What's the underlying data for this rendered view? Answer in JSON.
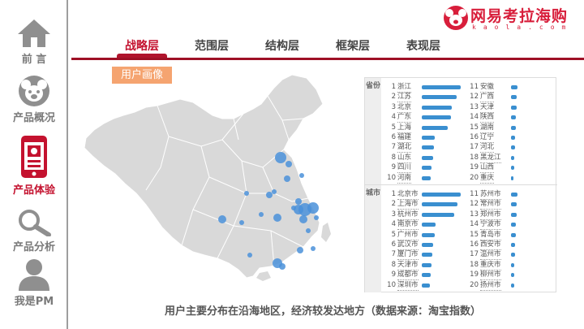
{
  "sidebar": {
    "items": [
      {
        "label": "前 言",
        "icon": "home-icon",
        "active": false
      },
      {
        "label": "产品概况",
        "icon": "koala-icon",
        "active": false
      },
      {
        "label": "产品体验",
        "icon": "phone-icon",
        "active": true
      },
      {
        "label": "产品分析",
        "icon": "magnifier-icon",
        "active": false
      },
      {
        "label": "我是PM",
        "icon": "person-icon",
        "active": false
      }
    ]
  },
  "logo": {
    "text": "网易考拉海购",
    "sub": "kaola.com",
    "color": "#d81e3b"
  },
  "tabs": [
    {
      "label": "战略层",
      "active": true
    },
    {
      "label": "范围层",
      "active": false
    },
    {
      "label": "结构层",
      "active": false
    },
    {
      "label": "框架层",
      "active": false
    },
    {
      "label": "表现层",
      "active": false
    }
  ],
  "badge": "用户画像",
  "ranking": {
    "province": {
      "tag": "省份",
      "left": [
        {
          "rank": "1",
          "name": "浙江",
          "value": 100
        },
        {
          "rank": "2",
          "name": "江苏",
          "value": 90
        },
        {
          "rank": "3",
          "name": "北京",
          "value": 78
        },
        {
          "rank": "4",
          "name": "广东",
          "value": 74
        },
        {
          "rank": "5",
          "name": "上海",
          "value": 67
        },
        {
          "rank": "6",
          "name": "福建",
          "value": 33
        },
        {
          "rank": "7",
          "name": "湖北",
          "value": 31
        },
        {
          "rank": "8",
          "name": "山东",
          "value": 29
        },
        {
          "rank": "9",
          "name": "四川",
          "value": 26
        },
        {
          "rank": "10",
          "name": "河南",
          "value": 22
        }
      ],
      "right": [
        {
          "rank": "11",
          "name": "安徽",
          "value": 18
        },
        {
          "rank": "12",
          "name": "广西",
          "value": 16
        },
        {
          "rank": "13",
          "name": "天津",
          "value": 15
        },
        {
          "rank": "14",
          "name": "陕西",
          "value": 14
        },
        {
          "rank": "15",
          "name": "湖南",
          "value": 13
        },
        {
          "rank": "16",
          "name": "辽宁",
          "value": 12
        },
        {
          "rank": "17",
          "name": "河北",
          "value": 11
        },
        {
          "rank": "18",
          "name": "黑龙江",
          "value": 10
        },
        {
          "rank": "19",
          "name": "山西",
          "value": 9
        },
        {
          "rank": "20",
          "name": "重庆",
          "value": 7
        }
      ]
    },
    "city": {
      "tag": "城市",
      "left": [
        {
          "rank": "1",
          "name": "北京市",
          "value": 100
        },
        {
          "rank": "2",
          "name": "上海市",
          "value": 92
        },
        {
          "rank": "3",
          "name": "杭州市",
          "value": 83
        },
        {
          "rank": "4",
          "name": "南京市",
          "value": 36
        },
        {
          "rank": "5",
          "name": "广州市",
          "value": 33
        },
        {
          "rank": "6",
          "name": "武汉市",
          "value": 30
        },
        {
          "rank": "7",
          "name": "厦门市",
          "value": 27
        },
        {
          "rank": "8",
          "name": "天津市",
          "value": 24
        },
        {
          "rank": "9",
          "name": "成都市",
          "value": 22
        },
        {
          "rank": "10",
          "name": "深圳市",
          "value": 20
        }
      ],
      "right": [
        {
          "rank": "11",
          "name": "苏州市",
          "value": 18
        },
        {
          "rank": "12",
          "name": "常州市",
          "value": 16
        },
        {
          "rank": "13",
          "name": "郑州市",
          "value": 15
        },
        {
          "rank": "14",
          "name": "宁波市",
          "value": 14
        },
        {
          "rank": "15",
          "name": "青岛市",
          "value": 13
        },
        {
          "rank": "16",
          "name": "西安市",
          "value": 12
        },
        {
          "rank": "17",
          "name": "温州市",
          "value": 11
        },
        {
          "rank": "18",
          "name": "重庆市",
          "value": 10
        },
        {
          "rank": "19",
          "name": "柳州市",
          "value": 9
        },
        {
          "rank": "20",
          "name": "扬州市",
          "value": 8
        }
      ]
    },
    "bar_color": "#3a8fd0"
  },
  "map": {
    "fill": "#d9d9d9",
    "border": "#ffffff",
    "dot_color": "#4a90d9"
  },
  "caption": "用户主要分布在沿海地区，经济较发达地方（数据来源：淘宝指数）"
}
